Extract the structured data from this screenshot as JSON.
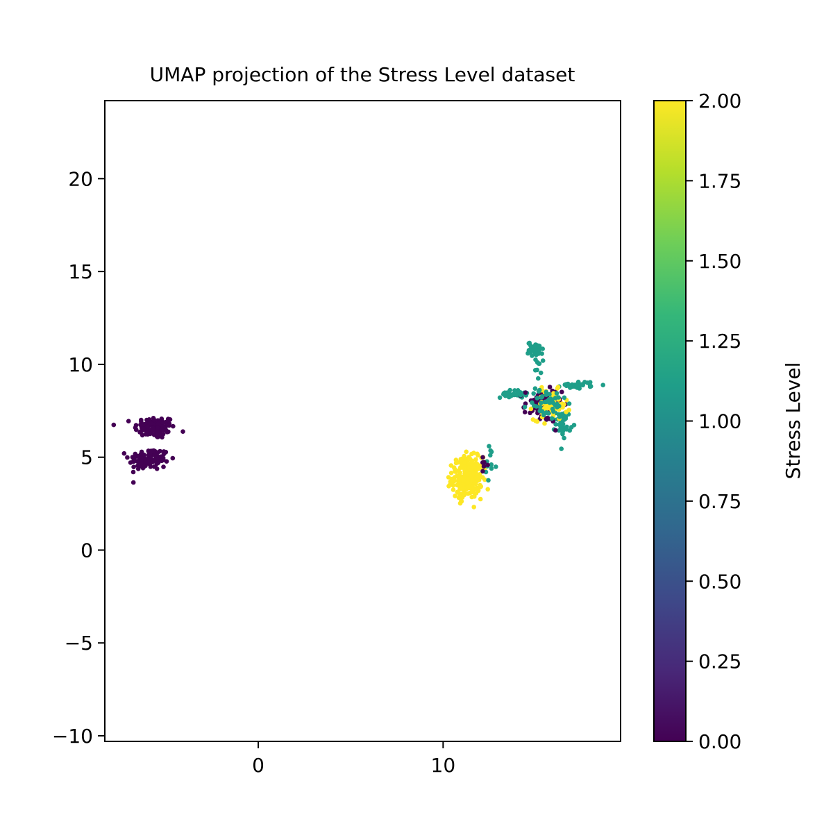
{
  "chart_data": {
    "type": "scatter",
    "title": "UMAP projection of the Stress Level dataset",
    "xlabel": "",
    "ylabel": "",
    "xlim": [
      -8.3,
      19.6
    ],
    "ylim": [
      -10.3,
      24.2
    ],
    "x_ticks": [
      0,
      10
    ],
    "x_tick_labels": [
      "0",
      "10"
    ],
    "y_ticks": [
      -10,
      -5,
      0,
      5,
      10,
      15,
      20
    ],
    "y_tick_labels": [
      "−10",
      "−5",
      "0",
      "5",
      "10",
      "15",
      "20"
    ],
    "grid": false,
    "colorbar": {
      "label": "Stress Level",
      "min": 0.0,
      "max": 2.0,
      "ticks": [
        0.0,
        0.25,
        0.5,
        0.75,
        1.0,
        1.25,
        1.5,
        1.75,
        2.0
      ],
      "tick_labels": [
        "0.00",
        "0.25",
        "0.50",
        "0.75",
        "1.00",
        "1.25",
        "1.50",
        "1.75",
        "2.00"
      ],
      "colormap": [
        "#440154",
        "#482878",
        "#3e4989",
        "#31688e",
        "#26828e",
        "#1f9e89",
        "#35b779",
        "#6ece58",
        "#b5de2b",
        "#fde725"
      ]
    },
    "clusters": [
      {
        "x": -5.6,
        "y": 6.6,
        "sx": 0.55,
        "sy": 0.3,
        "n": 110,
        "level": 0
      },
      {
        "x": -5.9,
        "y": 4.9,
        "sx": 0.55,
        "sy": 0.3,
        "n": 110,
        "level": 0
      },
      {
        "x": 11.3,
        "y": 3.9,
        "sx": 0.4,
        "sy": 0.55,
        "n": 260,
        "level": 2
      },
      {
        "x": 12.5,
        "y": 4.6,
        "sx": 0.2,
        "sy": 0.5,
        "n": 12,
        "level": 1
      },
      {
        "x": 12.3,
        "y": 4.3,
        "sx": 0.15,
        "sy": 0.5,
        "n": 6,
        "level": 0
      },
      {
        "x": 15.0,
        "y": 10.8,
        "sx": 0.2,
        "sy": 0.2,
        "n": 45,
        "level": 1
      },
      {
        "x": 15.1,
        "y": 9.8,
        "sx": 0.1,
        "sy": 0.3,
        "n": 8,
        "level": 1
      },
      {
        "x": 13.8,
        "y": 8.4,
        "sx": 0.35,
        "sy": 0.1,
        "n": 35,
        "level": 1
      },
      {
        "x": 17.3,
        "y": 8.9,
        "sx": 0.45,
        "sy": 0.1,
        "n": 30,
        "level": 1
      },
      {
        "x": 16.5,
        "y": 6.8,
        "sx": 0.2,
        "sy": 0.35,
        "n": 35,
        "level": 1
      },
      {
        "x": 15.4,
        "y": 7.8,
        "sx": 0.5,
        "sy": 0.45,
        "n": 80,
        "level": 0
      },
      {
        "x": 15.8,
        "y": 7.8,
        "sx": 0.45,
        "sy": 0.4,
        "n": 65,
        "level": 2
      },
      {
        "x": 15.6,
        "y": 7.9,
        "sx": 0.55,
        "sy": 0.45,
        "n": 45,
        "level": 1
      }
    ]
  }
}
